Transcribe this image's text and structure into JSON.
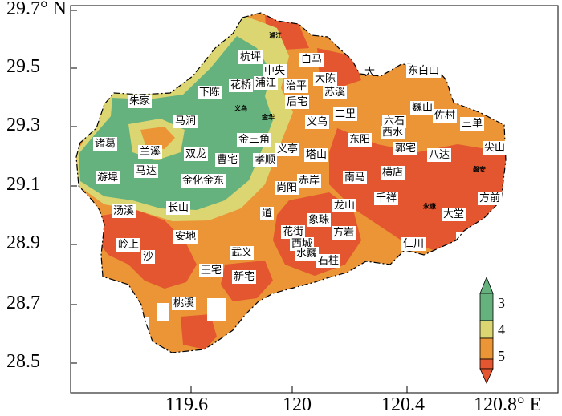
{
  "y_axis": {
    "ticks": [
      "29.7° N",
      "29.5",
      "29.3",
      "29.1",
      "28.9",
      "28.7",
      "28.5"
    ]
  },
  "x_axis": {
    "ticks": [
      "119.6",
      "120",
      "120.4",
      "120.8° E"
    ]
  },
  "legend": {
    "levels": [
      "3",
      "4",
      "5"
    ],
    "colors": {
      "level_3": "#66b27e",
      "level_4": "#dcd672",
      "level_5": "#eb9536",
      "level_6": "#e3562f"
    }
  },
  "colors": {
    "background": "#ffffff",
    "frame": "#000000"
  },
  "places": {
    "zhujia": "朱家",
    "hangping": "杭坪",
    "zhongyang": "中央",
    "baima": "白马",
    "pujiang": "浦江",
    "dachen": "大陈",
    "da": "大",
    "dongbaishan": "东白山",
    "xiachen": "下陈",
    "huaqiao": "花桥",
    "zhiping": "治平",
    "suxi": "苏溪",
    "houzhai": "后宅",
    "weishan": "巍山",
    "zuocun": "佐村",
    "majian": "马涧",
    "yiwu": "义乌",
    "erli": "二里",
    "liushi": "六石",
    "xishui": "西水",
    "sandan": "三单",
    "zhuge": "诸葛",
    "lanxi": "兰溪",
    "shuanglong": "双龙",
    "jinsanjiao": "金三角",
    "yiting": "义亭",
    "dongyang": "东阳",
    "guozhai": "郭宅",
    "bada": "八达",
    "jianshan": "尖山",
    "mada": "马达",
    "caozhai": "曹宅",
    "xiaoshun": "孝顺",
    "tashan": "塔山",
    "youbu": "游埠",
    "jinhuajindong": "金化金东",
    "chian": "赤岸",
    "nanma": "南马",
    "hengdian": "横店",
    "shangyang": "尚阳",
    "qianxiang": "千祥",
    "fangqian": "方前",
    "tangxi": "汤溪",
    "changshan": "长山",
    "dao": "道",
    "longshan": "龙山",
    "xiangzhu": "象珠",
    "datang": "大堂",
    "huajie": "花街",
    "fangyan": "方岩",
    "lingshang": "岭上",
    "andi": "安地",
    "xicheng": "西城",
    "renchuan": "仁川",
    "sha": "沙",
    "wuyi": "武义",
    "shuiwei": "水巍",
    "shizhu": "石柱",
    "wangzhai": "王宅",
    "xinzhai": "新宅",
    "taoxi": "桃溪",
    "city_pujiang": "浦江",
    "city_yiwu": "义乌",
    "city_jinhua": "金华",
    "city_panan": "磐安",
    "city_yongkang": "永康"
  }
}
